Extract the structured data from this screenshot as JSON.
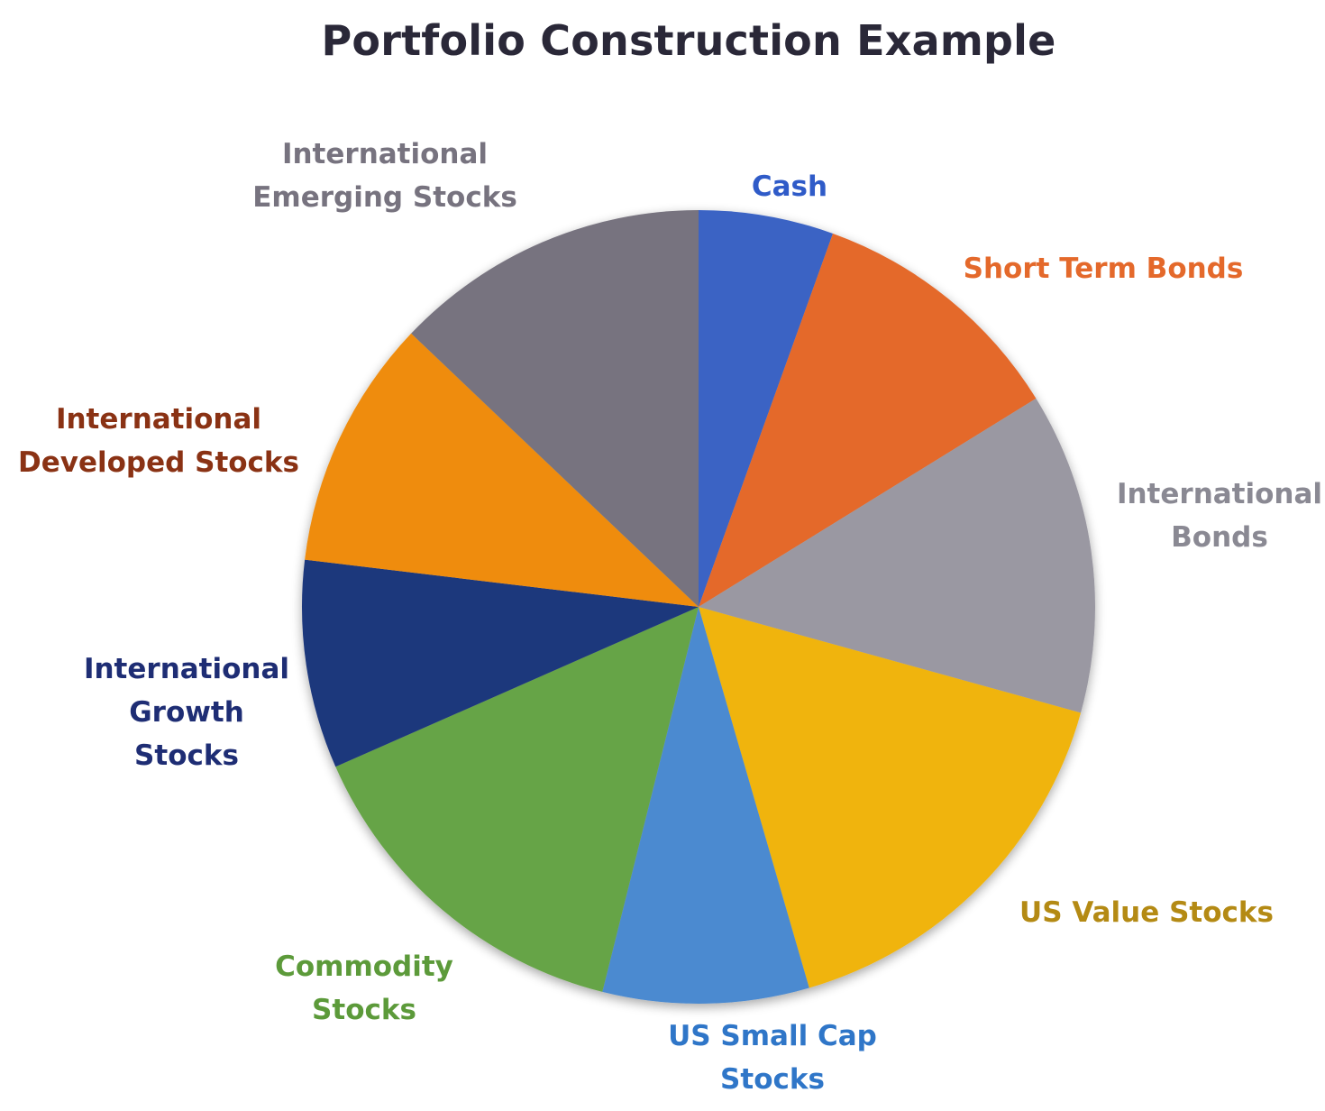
{
  "chart_data": {
    "type": "pie",
    "title": "Portfolio Construction Example",
    "slices": [
      {
        "label": [
          "Cash"
        ],
        "value": 5.5,
        "color": "#3a63c4",
        "label_color": "#2f5bc8"
      },
      {
        "label": [
          "Short Term Bonds"
        ],
        "value": 10.7,
        "color": "#e4692b",
        "label_color": "#e4692b"
      },
      {
        "label": [
          "International",
          "Bonds"
        ],
        "value": 13.1,
        "color": "#9a98a2",
        "label_color": "#8a8993"
      },
      {
        "label": [
          "US Value Stocks"
        ],
        "value": 16.2,
        "color": "#f0b40f",
        "label_color": "#b48a14"
      },
      {
        "label": [
          "US Small Cap",
          "Stocks"
        ],
        "value": 8.4,
        "color": "#4c8ad0",
        "label_color": "#2f76c8"
      },
      {
        "label": [
          "Commodity",
          "Stocks"
        ],
        "value": 14.5,
        "color": "#66a446",
        "label_color": "#5c9a3a"
      },
      {
        "label": [
          "International",
          "Growth",
          "Stocks"
        ],
        "value": 8.5,
        "color": "#1f377c",
        "label_color": "#1e2d74"
      },
      {
        "label": [
          "International",
          "Developed Stocks"
        ],
        "value": 10.2,
        "color": "#ef8c0c",
        "label_color": "#8a3214"
      },
      {
        "label": [
          "International",
          "Emerging Stocks"
        ],
        "value": 12.9,
        "color": "#77737f",
        "label_color": "#77737f"
      }
    ],
    "start": "12 o'clock",
    "direction": "clockwise"
  }
}
